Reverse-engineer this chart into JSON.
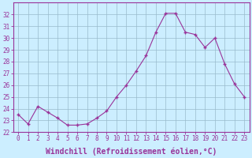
{
  "x": [
    0,
    1,
    2,
    3,
    4,
    5,
    6,
    7,
    8,
    9,
    10,
    11,
    12,
    13,
    14,
    15,
    16,
    17,
    18,
    19,
    20,
    21,
    22,
    23
  ],
  "y": [
    23.5,
    22.7,
    24.2,
    23.7,
    23.2,
    22.6,
    22.6,
    22.7,
    23.2,
    23.8,
    25.0,
    26.0,
    27.2,
    28.5,
    30.5,
    32.1,
    32.1,
    30.5,
    30.3,
    29.2,
    30.0,
    27.8,
    26.1,
    25.0
  ],
  "line_color": "#993399",
  "marker": "+",
  "marker_color": "#993399",
  "bg_color": "#cceeff",
  "grid_color": "#99bbcc",
  "axis_color": "#993399",
  "tick_color": "#993399",
  "xlabel": "Windchill (Refroidissement éolien,°C)",
  "ylim": [
    22,
    33
  ],
  "yticks": [
    22,
    23,
    24,
    25,
    26,
    27,
    28,
    29,
    30,
    31,
    32
  ],
  "xticks": [
    0,
    1,
    2,
    3,
    4,
    5,
    6,
    7,
    8,
    9,
    10,
    11,
    12,
    13,
    14,
    15,
    16,
    17,
    18,
    19,
    20,
    21,
    22,
    23
  ],
  "font_size": 5.5,
  "label_fontsize": 7.0
}
